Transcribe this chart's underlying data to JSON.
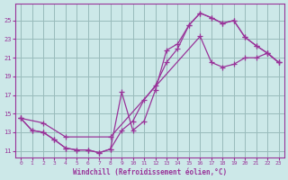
{
  "xlabel": "Windchill (Refroidissement éolien,°C)",
  "bg_color": "#cce8e8",
  "line_color": "#993399",
  "grid_color": "#99bbbb",
  "xlim": [
    -0.5,
    23.5
  ],
  "ylim": [
    10.3,
    26.8
  ],
  "xticks": [
    0,
    1,
    2,
    3,
    4,
    5,
    6,
    7,
    8,
    9,
    10,
    11,
    12,
    13,
    14,
    15,
    16,
    17,
    18,
    19,
    20,
    21,
    22,
    23
  ],
  "yticks": [
    11,
    13,
    15,
    17,
    19,
    21,
    23,
    25
  ],
  "series1_x": [
    0,
    1,
    2,
    3,
    4,
    5,
    6,
    7,
    8,
    9,
    10,
    11,
    12,
    13,
    14,
    15,
    16,
    17,
    18,
    19,
    20,
    21,
    22,
    23
  ],
  "series1_y": [
    14.5,
    13.2,
    13.0,
    12.2,
    11.3,
    11.1,
    11.1,
    10.8,
    11.2,
    13.2,
    14.2,
    16.5,
    18.0,
    20.5,
    22.0,
    24.5,
    25.8,
    25.3,
    24.7,
    25.0,
    23.2,
    22.3,
    21.5,
    20.5
  ],
  "series2_x": [
    0,
    1,
    2,
    3,
    4,
    5,
    6,
    7,
    8,
    9,
    10,
    11,
    12,
    13,
    14,
    15,
    16,
    17,
    18,
    19,
    20,
    21,
    22,
    23
  ],
  "series2_y": [
    14.5,
    13.2,
    13.0,
    12.2,
    11.3,
    11.1,
    11.1,
    10.8,
    11.2,
    17.3,
    13.2,
    14.2,
    17.5,
    21.8,
    22.5,
    24.5,
    25.8,
    25.3,
    24.7,
    25.0,
    23.2,
    22.3,
    21.5,
    20.5
  ],
  "series3_x": [
    0,
    2,
    4,
    8,
    16,
    17,
    18,
    19,
    20,
    21,
    22,
    23
  ],
  "series3_y": [
    14.5,
    14.0,
    12.5,
    12.5,
    23.3,
    20.5,
    20.0,
    20.3,
    21.0,
    21.0,
    21.5,
    20.5
  ]
}
